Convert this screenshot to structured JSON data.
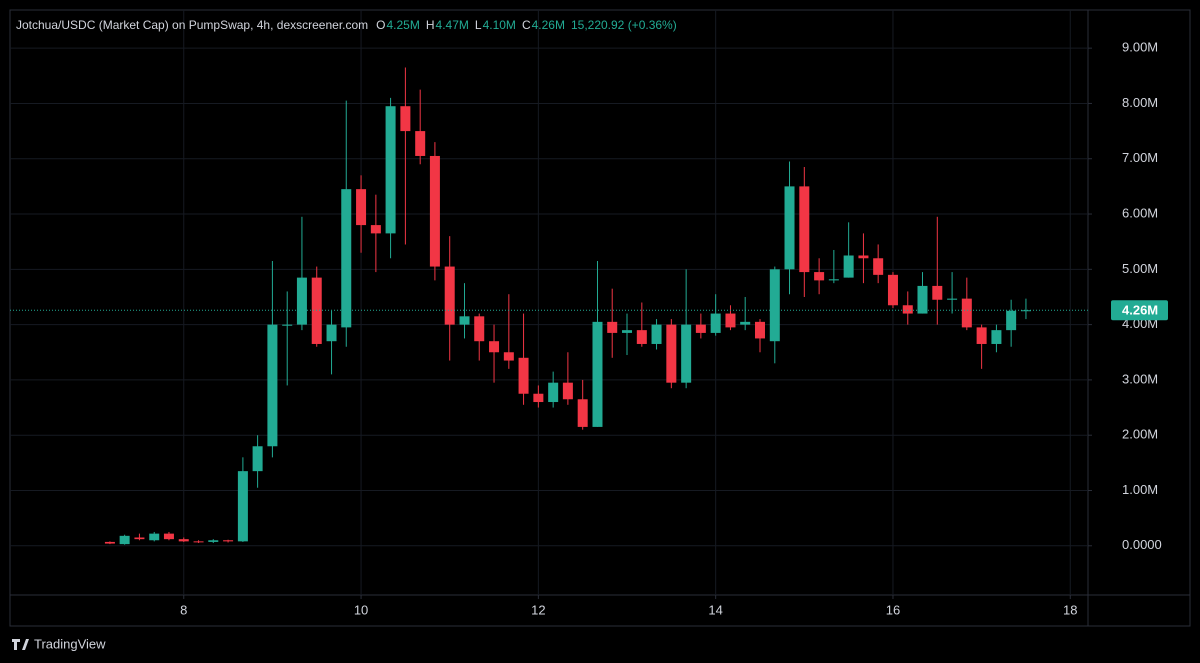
{
  "chart_data": {
    "type": "candlestick",
    "title": "Jotchua/USDC (Market Cap) on PumpSwap, 4h, dexscreener.com",
    "header": [
      {
        "key": "O",
        "value": "4.25M"
      },
      {
        "key": "H",
        "value": "4.47M"
      },
      {
        "key": "L",
        "value": "4.10M"
      },
      {
        "key": "C",
        "value": "4.26M"
      }
    ],
    "change": "15,220.92 (+0.36%)",
    "up_color": "#22ab94",
    "down_color": "#f23645",
    "grid": true,
    "x": [
      7.167,
      7.333,
      7.5,
      7.667,
      7.833,
      8,
      8.167,
      8.333,
      8.5,
      8.667,
      8.833,
      9,
      9.167,
      9.333,
      9.5,
      9.667,
      9.833,
      10,
      10.167,
      10.333,
      10.5,
      10.667,
      10.833,
      11,
      11.167,
      11.333,
      11.5,
      11.667,
      11.833,
      12,
      12.167,
      12.333,
      12.5,
      12.667,
      12.833,
      13,
      13.167,
      13.333,
      13.5,
      13.667,
      13.833,
      14,
      14.167,
      14.333,
      14.5,
      14.667,
      14.833,
      15,
      15.167,
      15.333,
      15.5,
      15.667,
      15.833,
      16,
      16.167,
      16.333,
      16.5,
      16.667,
      16.833,
      17,
      17.167,
      17.333,
      17.5
    ],
    "open": [
      0.07,
      0.03,
      0.15,
      0.1,
      0.22,
      0.12,
      0.08,
      0.07,
      0.1,
      0.08,
      1.35,
      1.8,
      3.98,
      4.0,
      4.85,
      3.7,
      3.95,
      6.45,
      5.8,
      5.65,
      7.95,
      7.5,
      7.05,
      5.05,
      4.0,
      4.15,
      3.7,
      3.5,
      3.4,
      2.75,
      2.6,
      2.95,
      2.65,
      2.15,
      4.05,
      3.85,
      3.9,
      3.65,
      4.0,
      2.95,
      4.0,
      3.85,
      4.2,
      4.0,
      4.05,
      3.7,
      5.0,
      6.5,
      4.95,
      4.8,
      4.85,
      5.25,
      5.2,
      4.9,
      4.35,
      4.2,
      4.7,
      4.45,
      4.47,
      3.95,
      3.65,
      3.9,
      4.25
    ],
    "high": [
      0.08,
      0.2,
      0.22,
      0.25,
      0.25,
      0.15,
      0.1,
      0.12,
      0.11,
      1.6,
      2.0,
      5.15,
      4.6,
      5.95,
      5.05,
      4.25,
      8.05,
      6.7,
      6.35,
      8.1,
      8.65,
      8.25,
      7.3,
      5.6,
      4.75,
      4.2,
      4.0,
      4.55,
      4.2,
      2.9,
      3.15,
      3.5,
      3.0,
      5.15,
      4.65,
      4.2,
      4.4,
      4.1,
      4.1,
      5.0,
      4.2,
      4.55,
      4.35,
      4.5,
      4.1,
      5.05,
      6.95,
      6.85,
      5.2,
      5.35,
      5.85,
      5.65,
      5.45,
      4.95,
      4.6,
      4.95,
      5.95,
      4.95,
      4.85,
      4.0,
      4.0,
      4.45,
      4.47
    ],
    "low": [
      0.03,
      0.02,
      0.1,
      0.08,
      0.1,
      0.07,
      0.05,
      0.05,
      0.06,
      0.07,
      1.05,
      1.6,
      2.9,
      3.9,
      3.6,
      3.1,
      3.6,
      5.3,
      4.95,
      5.2,
      5.45,
      6.9,
      4.8,
      3.35,
      3.75,
      3.35,
      2.95,
      3.2,
      2.55,
      2.5,
      2.5,
      2.55,
      2.1,
      2.15,
      3.4,
      3.45,
      3.6,
      3.55,
      2.85,
      2.85,
      3.75,
      3.8,
      3.9,
      3.9,
      3.5,
      3.3,
      4.55,
      4.5,
      4.55,
      4.75,
      4.85,
      4.75,
      4.75,
      4.3,
      4.0,
      4.2,
      4.0,
      4.2,
      3.9,
      3.2,
      3.5,
      3.6,
      4.1
    ],
    "close": [
      0.04,
      0.18,
      0.12,
      0.22,
      0.12,
      0.08,
      0.07,
      0.1,
      0.08,
      1.35,
      1.8,
      4.0,
      4.0,
      4.85,
      3.65,
      4.0,
      6.45,
      5.8,
      5.65,
      7.95,
      7.5,
      7.05,
      5.05,
      4.0,
      4.15,
      3.7,
      3.5,
      3.35,
      2.75,
      2.6,
      2.95,
      2.65,
      2.15,
      4.05,
      3.85,
      3.9,
      3.65,
      4.0,
      2.95,
      4.0,
      3.85,
      4.2,
      3.95,
      4.05,
      3.75,
      5.0,
      6.5,
      4.95,
      4.8,
      4.82,
      5.25,
      5.2,
      4.9,
      4.35,
      4.2,
      4.7,
      4.45,
      4.47,
      3.95,
      3.65,
      3.9,
      4.25,
      4.26
    ],
    "xlim": [
      6.04,
      18.2
    ],
    "xticks": [
      8,
      10,
      12,
      14,
      16,
      18
    ],
    "ylim": [
      -0.89,
      9.69
    ],
    "yticks": [
      {
        "value": 0,
        "label": "0.0000"
      },
      {
        "value": 1,
        "label": "1.00M"
      },
      {
        "value": 2,
        "label": "2.00M"
      },
      {
        "value": 3,
        "label": "3.00M"
      },
      {
        "value": 4,
        "label": "4.00M"
      },
      {
        "value": 5,
        "label": "5.00M"
      },
      {
        "value": 6,
        "label": "6.00M"
      },
      {
        "value": 7,
        "label": "7.00M"
      },
      {
        "value": 8,
        "label": "8.00M"
      },
      {
        "value": 9,
        "label": "9.00M"
      }
    ],
    "last_price": {
      "value": 4.26,
      "label": "4.26M"
    }
  },
  "footer": {
    "brand": "TradingView"
  }
}
